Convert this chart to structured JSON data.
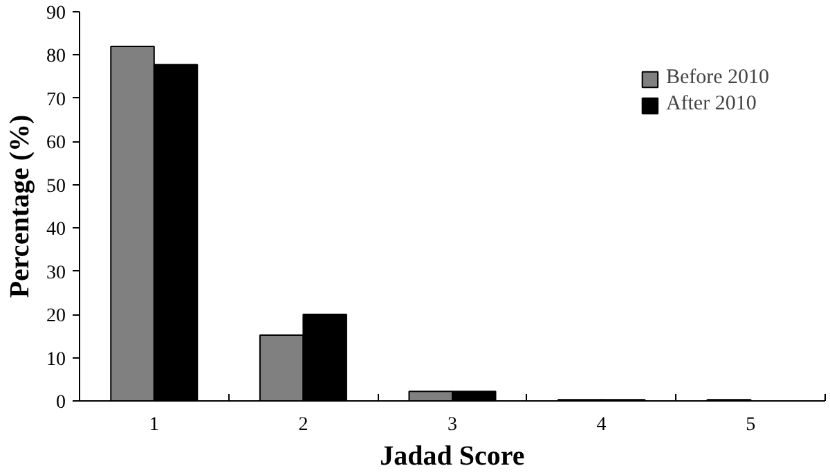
{
  "chart_data": {
    "type": "bar",
    "xlabel": "Jadad Score",
    "ylabel": "Percentage (%)",
    "categories": [
      "1",
      "2",
      "3",
      "4",
      "5"
    ],
    "series": [
      {
        "name": "Before 2010",
        "color": "#808080",
        "values": [
          82,
          15.2,
          2.2,
          0.3,
          0.3
        ]
      },
      {
        "name": "After 2010",
        "color": "#000000",
        "values": [
          77.8,
          20,
          2.2,
          0.3,
          0
        ]
      }
    ],
    "ylim": [
      0,
      90
    ],
    "yticks": [
      0,
      10,
      20,
      30,
      40,
      50,
      60,
      70,
      80,
      90
    ],
    "grid": false,
    "legend": "top right"
  }
}
